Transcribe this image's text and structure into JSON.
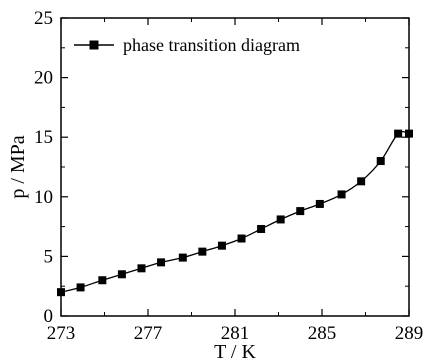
{
  "chart_data": {
    "type": "line",
    "title": "",
    "xlabel": "T / K",
    "ylabel": "p / MPa",
    "xlim": [
      273,
      289
    ],
    "ylim": [
      0,
      25
    ],
    "xticks": [
      273,
      277,
      281,
      285,
      289
    ],
    "yticks": [
      0,
      5,
      10,
      15,
      20,
      25
    ],
    "grid": false,
    "legend_position": "top-left",
    "series": [
      {
        "name": "phase transition diagram",
        "marker": "square",
        "color": "#000000",
        "x": [
          273.0,
          273.9,
          274.9,
          275.8,
          276.7,
          277.6,
          278.6,
          279.5,
          280.4,
          281.3,
          282.2,
          283.1,
          284.0,
          284.9,
          285.9,
          286.8,
          287.7,
          288.5,
          289.0
        ],
        "y": [
          2.0,
          2.4,
          3.0,
          3.5,
          4.0,
          4.5,
          4.9,
          5.4,
          5.9,
          6.5,
          7.3,
          8.1,
          8.8,
          9.4,
          10.2,
          11.3,
          13.0,
          15.3,
          15.3
        ]
      }
    ]
  }
}
